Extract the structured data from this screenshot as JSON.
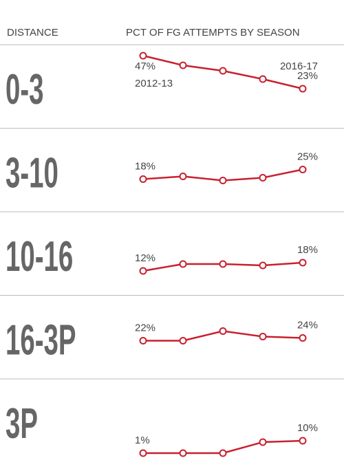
{
  "chart_data": {
    "type": "line",
    "row_header": "DISTANCE",
    "title": "PCT OF FG ATTEMPTS BY SEASON",
    "annotations": [
      "2012-13",
      "2016-17"
    ],
    "ylim": [
      0,
      50
    ],
    "series": [
      {
        "name": "0-3",
        "color": "#c8202f",
        "values": [
          47,
          40,
          36,
          30,
          23
        ],
        "value_labels": [
          "47%",
          null,
          null,
          null,
          "23%"
        ]
      },
      {
        "name": "3-10",
        "color": "#c8202f",
        "values": [
          18,
          20,
          17,
          19,
          25
        ],
        "value_labels": [
          "18%",
          null,
          null,
          null,
          "25%"
        ]
      },
      {
        "name": "10-16",
        "color": "#c8202f",
        "values": [
          12,
          17,
          17,
          16,
          18
        ],
        "value_labels": [
          "12%",
          null,
          null,
          null,
          "18%"
        ]
      },
      {
        "name": "16-3P",
        "color": "#c8202f",
        "values": [
          22,
          22,
          29,
          25,
          24
        ],
        "value_labels": [
          "22%",
          null,
          null,
          null,
          "24%"
        ]
      },
      {
        "name": "3P",
        "color": "#c8202f",
        "values": [
          1,
          1,
          1,
          9,
          10
        ],
        "value_labels": [
          "1%",
          null,
          null,
          null,
          "10%"
        ]
      }
    ]
  }
}
